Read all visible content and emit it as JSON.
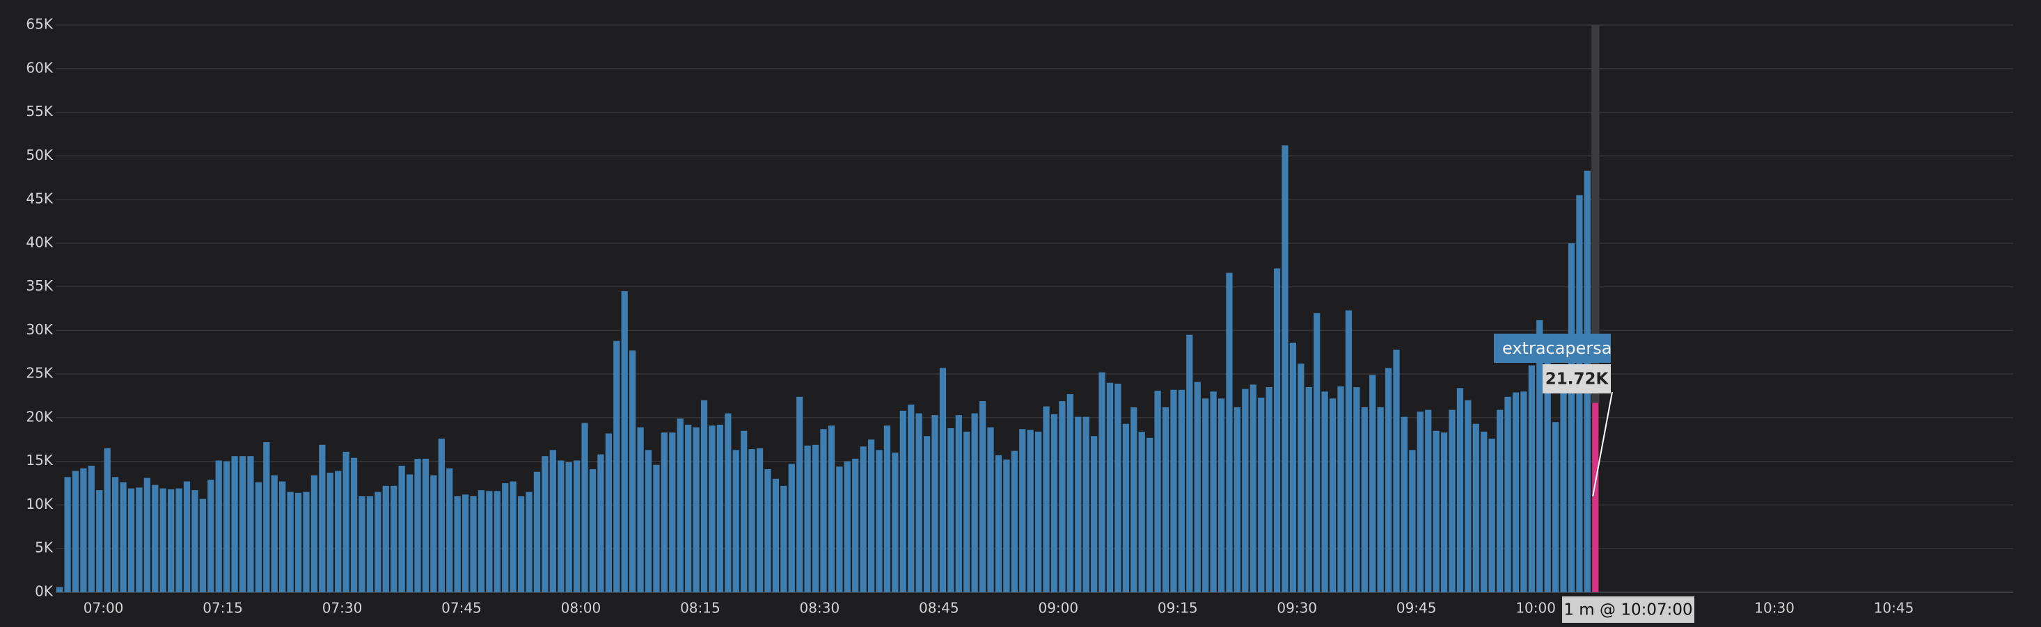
{
  "colors": {
    "background": "#1e1e20",
    "bar": "#3f7eb0",
    "highlight_bar": "#d63384",
    "grid": "#353537",
    "cursor": "#3c3c3e",
    "tooltip_series_bg": "#3f7eb0",
    "tooltip_value_bg": "#d9d9d9",
    "tooltip_time_bg": "#cfcfcf"
  },
  "chart_data": {
    "type": "bar",
    "xlabel": "",
    "ylabel": "",
    "ylim": [
      0,
      65000
    ],
    "y_ticks": [
      {
        "value": 0,
        "label": "0K"
      },
      {
        "value": 5000,
        "label": "5K"
      },
      {
        "value": 10000,
        "label": "10K"
      },
      {
        "value": 15000,
        "label": "15K"
      },
      {
        "value": 20000,
        "label": "20K"
      },
      {
        "value": 25000,
        "label": "25K"
      },
      {
        "value": 30000,
        "label": "30K"
      },
      {
        "value": 35000,
        "label": "35K"
      },
      {
        "value": 40000,
        "label": "40K"
      },
      {
        "value": 45000,
        "label": "45K"
      },
      {
        "value": 50000,
        "label": "50K"
      },
      {
        "value": 55000,
        "label": "55K"
      },
      {
        "value": 60000,
        "label": "60K"
      },
      {
        "value": 65000,
        "label": "65K"
      }
    ],
    "x_range": [
      "06:54",
      "11:00"
    ],
    "x_ticks": [
      {
        "time": "07:00",
        "label": "07:00"
      },
      {
        "time": "07:15",
        "label": "07:15"
      },
      {
        "time": "07:30",
        "label": "07:30"
      },
      {
        "time": "07:45",
        "label": "07:45"
      },
      {
        "time": "08:00",
        "label": "08:00"
      },
      {
        "time": "08:15",
        "label": "08:15"
      },
      {
        "time": "08:30",
        "label": "08:30"
      },
      {
        "time": "08:45",
        "label": "08:45"
      },
      {
        "time": "09:00",
        "label": "09:00"
      },
      {
        "time": "09:15",
        "label": "09:15"
      },
      {
        "time": "09:30",
        "label": "09:30"
      },
      {
        "time": "09:45",
        "label": "09:45"
      },
      {
        "time": "10:00",
        "label": "10:00"
      },
      {
        "time": "10:15",
        "label": "10:15"
      },
      {
        "time": "10:30",
        "label": "10:30"
      },
      {
        "time": "10:45",
        "label": "10:45"
      }
    ],
    "series": [
      {
        "start": "06:54",
        "interval": "1 m",
        "values": [
          600,
          13200,
          13900,
          14200,
          14500,
          11700,
          16500,
          13200,
          12600,
          11900,
          12000,
          13100,
          12300,
          11900,
          11800,
          11900,
          12700,
          11700,
          10700,
          12900,
          15100,
          15000,
          15600,
          15600,
          15600,
          12600,
          17200,
          13400,
          12700,
          11500,
          11400,
          11500,
          13400,
          16900,
          13700,
          13900,
          16100,
          15400,
          11000,
          11000,
          11500,
          12200,
          12200,
          14500,
          13500,
          15300,
          15300,
          13400,
          17600,
          14200,
          11000,
          11200,
          11000,
          11700,
          11600,
          11600,
          12500,
          12700,
          11000,
          11500,
          13800,
          15600,
          16300,
          15100,
          14900,
          15100,
          19400,
          14100,
          15800,
          18200,
          28800,
          34500,
          27700,
          18900,
          16300,
          14600,
          18300,
          18300,
          19900,
          19200,
          18900,
          22000,
          19100,
          19200,
          20500,
          16300,
          18500,
          16400,
          16500,
          14100,
          13000,
          12200,
          14700,
          22400,
          16800,
          16900,
          18700,
          19100,
          14400,
          15000,
          15300,
          16700,
          17500,
          16300,
          19100,
          16000,
          20800,
          21500,
          20500,
          17900,
          20300,
          25700,
          18800,
          20300,
          18400,
          20500,
          21900,
          18900,
          15700,
          15200,
          16200,
          18700,
          18600,
          18400,
          21300,
          20400,
          21900,
          22700,
          20100,
          20100,
          17900,
          25200,
          24000,
          23900,
          19300,
          21200,
          18400,
          17700,
          23100,
          21200,
          23200,
          23200,
          29500,
          24100,
          22200,
          23000,
          22200,
          36600,
          21200,
          23300,
          23800,
          22300,
          23500,
          37100,
          51200,
          28600,
          26200,
          23500,
          32000,
          23000,
          22200,
          23600,
          32300,
          23500,
          21200,
          24900,
          21200,
          25700,
          27800,
          20100,
          16300,
          20700,
          20900,
          18500,
          18300,
          20900,
          23400,
          22000,
          19300,
          18400,
          17600,
          20900,
          22400,
          22900,
          23000,
          26000,
          31200,
          28000,
          19500,
          24400,
          40000,
          45500,
          48300,
          21720
        ]
      }
    ],
    "tooltip": {
      "series_name": "extracapersa",
      "value_label": "21.72K",
      "time_label": "1 m @ 10:07:00"
    }
  }
}
